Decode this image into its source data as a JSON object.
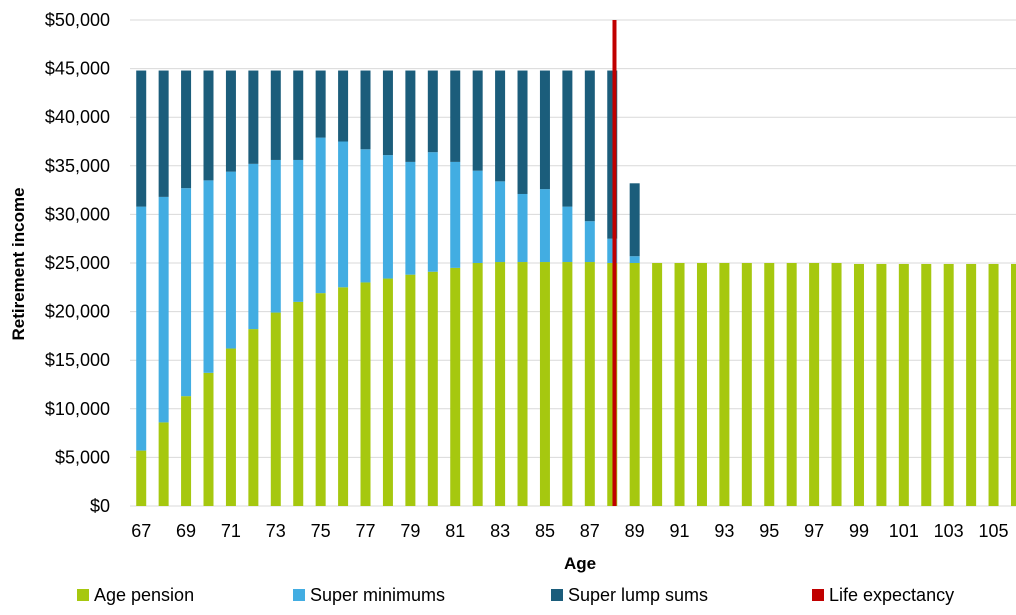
{
  "chart_data": {
    "type": "bar",
    "stacked": true,
    "title": "",
    "xlabel": "Age",
    "ylabel": "Retirement income",
    "ylim": [
      0,
      50000
    ],
    "y_ticks": [
      "$0",
      "$5,000",
      "$10,000",
      "$15,000",
      "$20,000",
      "$25,000",
      "$30,000",
      "$35,000",
      "$40,000",
      "$45,000",
      "$50,000"
    ],
    "grid": "horizontal",
    "legend_position": "bottom",
    "categories": [
      67,
      68,
      69,
      70,
      71,
      72,
      73,
      74,
      75,
      76,
      77,
      78,
      79,
      80,
      81,
      82,
      83,
      84,
      85,
      86,
      87,
      88,
      89,
      90,
      91,
      92,
      93,
      94,
      95,
      96,
      97,
      98,
      99,
      100,
      101,
      102,
      103,
      104,
      105,
      106
    ],
    "x_tick_labels": [
      "67",
      "69",
      "71",
      "73",
      "75",
      "77",
      "79",
      "81",
      "83",
      "85",
      "87",
      "89",
      "91",
      "93",
      "95",
      "97",
      "99",
      "101",
      "103",
      "105"
    ],
    "series": [
      {
        "name": "Age pension",
        "color": "#a6c80f",
        "values": [
          5700,
          8600,
          11300,
          13700,
          16200,
          18200,
          19900,
          21000,
          21900,
          22500,
          23000,
          23400,
          23800,
          24100,
          24500,
          25000,
          25100,
          25100,
          25100,
          25100,
          25100,
          25000,
          25000,
          25000,
          25000,
          25000,
          25000,
          25000,
          25000,
          25000,
          25000,
          25000,
          24900,
          24900,
          24900,
          24900,
          24900,
          24900,
          24900,
          24900
        ]
      },
      {
        "name": "Super minimums",
        "color": "#42ade2",
        "values": [
          25100,
          23200,
          21400,
          19800,
          18200,
          17000,
          15700,
          14600,
          16000,
          15000,
          13700,
          12700,
          11600,
          12300,
          10900,
          9500,
          8300,
          7000,
          7500,
          5700,
          4200,
          2500,
          700,
          0,
          0,
          0,
          0,
          0,
          0,
          0,
          0,
          0,
          0,
          0,
          0,
          0,
          0,
          0,
          0,
          0
        ]
      },
      {
        "name": "Super lump sums",
        "color": "#1b5d7b",
        "values": [
          14000,
          13000,
          12100,
          11300,
          10400,
          9600,
          9200,
          9200,
          6900,
          7300,
          8100,
          8700,
          9400,
          8400,
          9400,
          10300,
          11400,
          12700,
          12200,
          14000,
          15500,
          17300,
          7500,
          0,
          0,
          0,
          0,
          0,
          0,
          0,
          0,
          0,
          0,
          0,
          0,
          0,
          0,
          0,
          0,
          0
        ]
      }
    ],
    "reference_line": {
      "name": "Life expectancy",
      "color": "#c00000",
      "x": 88.1
    }
  }
}
